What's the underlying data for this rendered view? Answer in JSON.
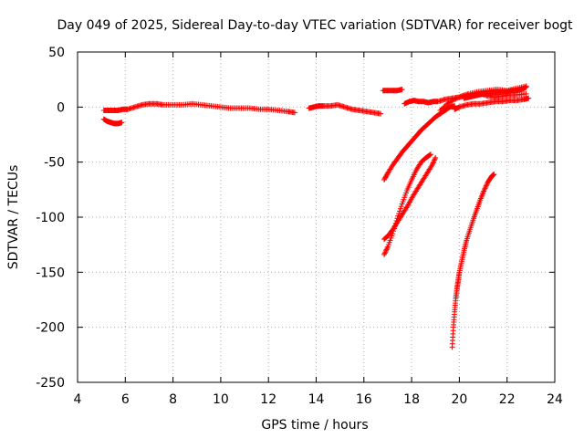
{
  "chart_data": {
    "type": "scatter",
    "title": "Day 049 of 2025, Sidereal Day-to-day VTEC variation (SDTVAR) for receiver bogt",
    "xlabel": "GPS time / hours",
    "ylabel": "SDTVAR / TECUs",
    "xlim": [
      4,
      24
    ],
    "ylim": [
      -250,
      50
    ],
    "xticks": [
      4,
      6,
      8,
      10,
      12,
      14,
      16,
      18,
      20,
      22,
      24
    ],
    "yticks": [
      -250,
      -200,
      -150,
      -100,
      -50,
      0,
      50
    ],
    "xtick_labels": [
      "4",
      "6",
      "8",
      "10",
      "12",
      "14",
      "16",
      "18",
      "20",
      "22",
      "24"
    ],
    "ytick_labels": [
      "-250",
      "-200",
      "-150",
      "-100",
      "-50",
      "0",
      "50"
    ],
    "grid": true,
    "marker": "+",
    "color": "#ff0000",
    "series": [
      {
        "name": "s1",
        "x": [
          5.1,
          5.3,
          5.5,
          5.7,
          5.9,
          6.1,
          6.4,
          6.7,
          7.0,
          7.3,
          7.6,
          8.0,
          8.4,
          8.8,
          9.2,
          9.6,
          10.0,
          10.4,
          10.8,
          11.2,
          11.6,
          12.0,
          12.4,
          12.8,
          13.1
        ],
        "y": [
          -3,
          -3,
          -3,
          -3,
          -2,
          -2,
          0,
          2,
          3,
          3,
          2,
          2,
          2,
          3,
          2,
          1,
          0,
          -1,
          -1,
          -1,
          -2,
          -2,
          -3,
          -4,
          -5
        ]
      },
      {
        "name": "s2",
        "x": [
          5.1,
          5.25,
          5.4,
          5.55,
          5.7,
          5.85
        ],
        "y": [
          -11,
          -13,
          -14,
          -15,
          -15,
          -14
        ]
      },
      {
        "name": "s3",
        "x": [
          13.7,
          13.9,
          14.1,
          14.3,
          14.6,
          14.9,
          15.2,
          15.5,
          15.8,
          16.1,
          16.4,
          16.7
        ],
        "y": [
          -1,
          0,
          1,
          1,
          1,
          2,
          0,
          -2,
          -3,
          -4,
          -5,
          -6
        ]
      },
      {
        "name": "s4",
        "x": [
          16.8,
          17.0,
          17.2,
          17.4,
          17.6
        ],
        "y": [
          15,
          15,
          15,
          15,
          16
        ]
      },
      {
        "name": "s5",
        "x": [
          17.7,
          17.9,
          18.1,
          18.3,
          18.5,
          18.7,
          18.9,
          19.1,
          19.4,
          19.7,
          20.0,
          20.3,
          20.6,
          20.9,
          21.2,
          21.5,
          21.8,
          22.1,
          22.4,
          22.8
        ],
        "y": [
          3,
          5,
          6,
          5,
          5,
          4,
          5,
          5,
          7,
          8,
          9,
          10,
          11,
          12,
          10,
          9,
          10,
          11,
          11,
          12
        ]
      },
      {
        "name": "s6",
        "x": [
          19.8,
          20.0,
          20.3,
          20.6,
          20.9,
          21.2,
          21.5,
          21.8,
          22.1,
          22.4,
          22.7,
          22.9
        ],
        "y": [
          -2,
          0,
          2,
          3,
          3,
          4,
          5,
          5,
          6,
          6,
          7,
          8
        ]
      },
      {
        "name": "s7",
        "x": [
          19.2,
          19.5,
          19.8,
          20.1,
          20.4,
          20.8,
          21.2,
          21.6,
          22.0,
          22.4,
          22.8
        ],
        "y": [
          -3,
          3,
          7,
          10,
          12,
          14,
          15,
          16,
          15,
          17,
          19
        ]
      },
      {
        "name": "s8",
        "x": [
          20.2,
          20.4,
          20.6,
          20.8,
          21.0,
          21.2,
          21.4,
          21.6,
          21.8,
          22.0,
          22.2,
          22.4,
          22.6,
          22.8
        ],
        "y": [
          8,
          9,
          10,
          11,
          12,
          12,
          13,
          13,
          14,
          14,
          15,
          15,
          16,
          18
        ]
      },
      {
        "name": "s9",
        "x": [
          16.85,
          17.0,
          17.2,
          17.4,
          17.6,
          17.8,
          18.0,
          18.2,
          18.4,
          18.6,
          18.8,
          19.0,
          19.2,
          19.4,
          19.6,
          19.8
        ],
        "y": [
          -66,
          -60,
          -53,
          -47,
          -41,
          -36,
          -31,
          -26,
          -21,
          -17,
          -13,
          -9,
          -6,
          -3,
          0,
          1
        ]
      },
      {
        "name": "s10",
        "x": [
          16.85,
          17.05,
          17.25,
          17.45,
          17.65,
          17.85,
          18.05,
          18.25,
          18.45,
          18.65,
          18.85,
          19.0
        ],
        "y": [
          -120,
          -116,
          -110,
          -103,
          -96,
          -89,
          -81,
          -74,
          -67,
          -60,
          -53,
          -46
        ]
      },
      {
        "name": "s11",
        "x": [
          16.85,
          17.0,
          17.2,
          17.4,
          17.6,
          17.8,
          18.0,
          18.2,
          18.4,
          18.6,
          18.8
        ],
        "y": [
          -134,
          -127,
          -115,
          -101,
          -88,
          -76,
          -66,
          -57,
          -50,
          -46,
          -43
        ]
      },
      {
        "name": "s12",
        "x": [
          19.7,
          19.75,
          19.8,
          19.85,
          19.9,
          19.95,
          20.0,
          20.1,
          20.2,
          20.3,
          20.45,
          20.6,
          20.75,
          20.9,
          21.05,
          21.2,
          21.35,
          21.45
        ],
        "y": [
          -218,
          -200,
          -186,
          -174,
          -165,
          -158,
          -150,
          -140,
          -130,
          -121,
          -111,
          -101,
          -92,
          -83,
          -75,
          -68,
          -63,
          -61
        ]
      }
    ]
  }
}
